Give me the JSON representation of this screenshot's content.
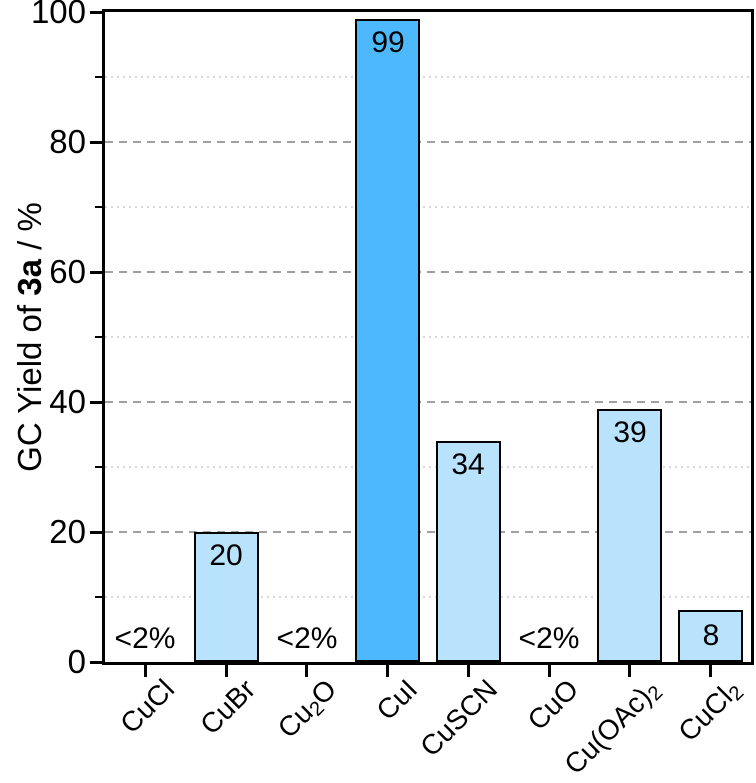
{
  "chart_data": {
    "type": "bar",
    "title": "",
    "ylabel_parts": [
      {
        "text": "GC Yield of ",
        "bold": false
      },
      {
        "text": "3a",
        "bold": true
      },
      {
        "text": " / %",
        "bold": false
      }
    ],
    "categories": [
      "CuCl",
      "CuBr",
      "Cu₂O",
      "CuI",
      "CuSCN",
      "CuO",
      "Cu(OAc)₂",
      "CuCl₂"
    ],
    "values": [
      0,
      20,
      0,
      99,
      34,
      0,
      39,
      8
    ],
    "bar_labels": [
      "<2%",
      "20",
      "<2%",
      "99",
      "34",
      "<2%",
      "39",
      "8"
    ],
    "bar_colors": [
      "#b9e2fc",
      "#b9e2fc",
      "#b9e2fc",
      "#4db8fb",
      "#b9e2fc",
      "#b9e2fc",
      "#b9e2fc",
      "#b9e2fc"
    ],
    "ylim": [
      0,
      100
    ],
    "y_major_step": 20,
    "y_minor_step": 10,
    "y_tick_labels": [
      "0",
      "20",
      "40",
      "60",
      "80",
      "100"
    ],
    "grid": {
      "major": "dashed",
      "minor": "dotted"
    },
    "legend_position": "none",
    "colors": {
      "bar_fill_default": "#b9e2fc",
      "bar_fill_highlight": "#4db8fb",
      "bar_border": "#000000",
      "axis": "#000000",
      "grid_major": "#a0a0a0",
      "grid_minor": "#d9d9d9",
      "text": "#000000",
      "background": "#ffffff"
    }
  }
}
